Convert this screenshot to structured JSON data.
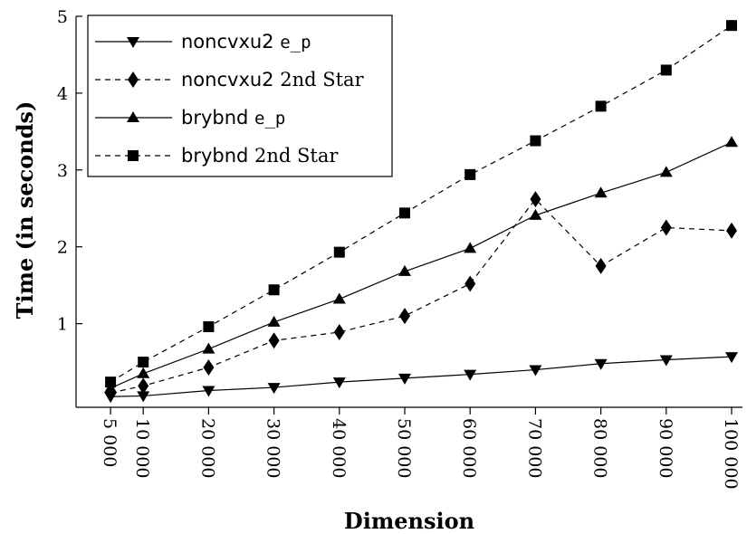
{
  "chart_data": {
    "type": "line",
    "xlabel": "Dimension",
    "ylabel": "Time (in seconds)",
    "x": [
      5000,
      10000,
      20000,
      30000,
      40000,
      50000,
      60000,
      70000,
      80000,
      90000,
      100000
    ],
    "x_tick_labels": [
      "5 000",
      "10 000",
      "20 000",
      "30 000",
      "40 000",
      "50 000",
      "60 000",
      "70 000",
      "80 000",
      "90 000",
      "100 000"
    ],
    "y_ticks": [
      1,
      2,
      3,
      4,
      5
    ],
    "xlim": [
      0,
      100000
    ],
    "ylim": [
      -0.1,
      5
    ],
    "grid": false,
    "legend_position": "top-left",
    "series": [
      {
        "name": "noncvxu2 e_p",
        "name_main": "noncvxu2",
        "name_suffix": "e_p",
        "marker": "triangle-down",
        "line_style": "solid",
        "values": [
          0.05,
          0.06,
          0.13,
          0.17,
          0.24,
          0.29,
          0.34,
          0.4,
          0.48,
          0.53,
          0.57
        ]
      },
      {
        "name": "noncvxu2 2nd Star",
        "name_main": "noncvxu2",
        "name_suffix": "2nd Star",
        "marker": "diamond",
        "line_style": "dashed",
        "values": [
          0.1,
          0.19,
          0.43,
          0.78,
          0.89,
          1.1,
          1.52,
          2.62,
          1.75,
          2.25,
          2.21
        ]
      },
      {
        "name": "brybnd e_p",
        "name_main": "brybnd",
        "name_suffix": "e_p",
        "marker": "triangle-up",
        "line_style": "solid",
        "values": [
          0.16,
          0.35,
          0.67,
          1.02,
          1.32,
          1.68,
          1.98,
          2.41,
          2.7,
          2.97,
          3.36
        ]
      },
      {
        "name": "brybnd 2nd Star",
        "name_main": "brybnd",
        "name_suffix": "2nd Star",
        "marker": "square",
        "line_style": "dashed",
        "values": [
          0.24,
          0.5,
          0.96,
          1.44,
          1.93,
          2.44,
          2.94,
          3.38,
          3.83,
          4.3,
          4.88
        ]
      }
    ]
  }
}
